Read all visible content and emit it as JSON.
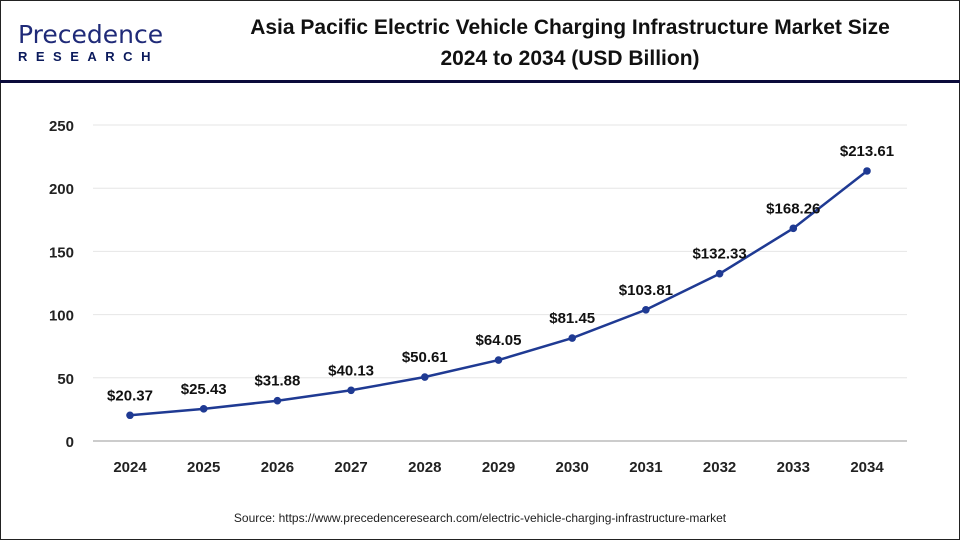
{
  "logo": {
    "main": "Precedence",
    "sub": "RESEARCH"
  },
  "header": {
    "title_line1": "Asia Pacific Electric Vehicle Charging Infrastructure Market Size",
    "title_line2": "2024 to 2034 (USD Billion)"
  },
  "source": "Source: https://www.precedenceresearch.com/electric-vehicle-charging-infrastructure-market",
  "chart_data": {
    "type": "line",
    "title": "Asia Pacific Electric Vehicle Charging Infrastructure Market Size 2024 to 2034 (USD Billion)",
    "categories": [
      "2024",
      "2025",
      "2026",
      "2027",
      "2028",
      "2029",
      "2030",
      "2031",
      "2032",
      "2033",
      "2034"
    ],
    "values": [
      20.37,
      25.43,
      31.88,
      40.13,
      50.61,
      64.05,
      81.45,
      103.81,
      132.33,
      168.26,
      213.61
    ],
    "data_labels": [
      "$20.37",
      "$25.43",
      "$31.88",
      "$40.13",
      "$50.61",
      "$64.05",
      "$81.45",
      "$103.81",
      "$132.33",
      "$168.26",
      "$213.61"
    ],
    "yticks": [
      "0",
      "50",
      "100",
      "150",
      "200",
      "250"
    ],
    "ylim": [
      0,
      250
    ],
    "grid": true,
    "line_color": "#1f3a93"
  }
}
